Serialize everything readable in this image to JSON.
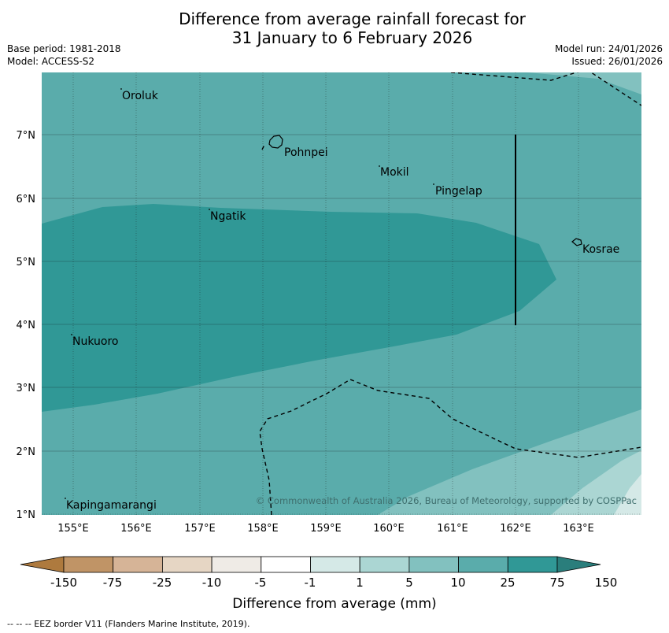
{
  "title": {
    "line1": "Difference from average rainfall forecast for",
    "line2": "31 January to 6 February 2026"
  },
  "meta": {
    "base_period": "Base period: 1981-2018",
    "model": "Model: ACCESS-S2",
    "model_run": "Model run: 24/01/2026",
    "issued": "Issued: 26/01/2026"
  },
  "map": {
    "lon_ticks": [
      "155°E",
      "156°E",
      "157°E",
      "158°E",
      "159°E",
      "160°E",
      "161°E",
      "162°E",
      "163°E"
    ],
    "lat_ticks": [
      "7°N",
      "6°N",
      "5°N",
      "4°N",
      "3°N",
      "2°N",
      "1°N"
    ],
    "places": [
      "Oroluk",
      "Pohnpei",
      "Mokil",
      "Pingelap",
      "Ngatik",
      "Kosrae",
      "Nukuoro",
      "Kapingamarangi"
    ],
    "copyright": "© Commonwealth of Australia 2026, Bureau of Meteorology, supported by COSPPac"
  },
  "colorbar": {
    "colors": [
      "#ae7a3e",
      "#c09466",
      "#d6b497",
      "#e6d6c4",
      "#efebe6",
      "#ffffff",
      "#d5e9e7",
      "#abd6d3",
      "#82c1bf",
      "#5aacab",
      "#309896",
      "#2a7e7c"
    ],
    "tick_labels": [
      "-150",
      "-75",
      "-25",
      "-10",
      "-5",
      "-1",
      "1",
      "5",
      "10",
      "25",
      "75",
      "150"
    ],
    "label": "Difference from average (mm)"
  },
  "footer": {
    "eez_note": "--  --  -- EEZ border V11 (Flanders Marine Institute, 2019)."
  },
  "colors": {
    "band_75_150": "#309896",
    "band_25_75": "#5aacab",
    "band_10_25": "#82c1bf",
    "band_5_10": "#abd6d3",
    "band_1_5": "#d5e9e7"
  }
}
